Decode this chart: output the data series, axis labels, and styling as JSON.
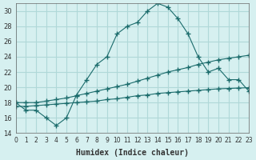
{
  "xlabel": "Humidex (Indice chaleur)",
  "ylabel": "",
  "bg_color": "#d6f0f0",
  "grid_color": "#b0d8d8",
  "line_color": "#1a6b6b",
  "xlim": [
    0,
    23
  ],
  "ylim": [
    14,
    31
  ],
  "xticks": [
    0,
    1,
    2,
    3,
    4,
    5,
    6,
    7,
    8,
    9,
    10,
    11,
    12,
    13,
    14,
    15,
    16,
    17,
    18,
    19,
    20,
    21,
    22,
    23
  ],
  "yticks": [
    14,
    16,
    18,
    20,
    22,
    24,
    26,
    28,
    30
  ],
  "line1_x": [
    0,
    1,
    2,
    3,
    4,
    5,
    6,
    7,
    8,
    9,
    10,
    11,
    12,
    13,
    14,
    15,
    16,
    17,
    18,
    19,
    20,
    21,
    22,
    23
  ],
  "line1_y": [
    18,
    17,
    17,
    16,
    15,
    16,
    19,
    21,
    23,
    24,
    27,
    28,
    28.5,
    30,
    31,
    30.5,
    29,
    27,
    24,
    22,
    22.5,
    21,
    21,
    19.5
  ],
  "line2_x": [
    0,
    1,
    2,
    3,
    4,
    5,
    6,
    7,
    8,
    9,
    10,
    11,
    12,
    13,
    14,
    15,
    16,
    17,
    18,
    19,
    20,
    21,
    22,
    23
  ],
  "line2_y": [
    18,
    18,
    18,
    18.2,
    18.4,
    18.6,
    18.9,
    19.2,
    19.5,
    19.8,
    20.1,
    20.4,
    20.8,
    21.2,
    21.6,
    22,
    22.3,
    22.6,
    23,
    23.3,
    23.6,
    23.8,
    24,
    24.2
  ],
  "line3_x": [
    0,
    1,
    2,
    3,
    4,
    5,
    6,
    7,
    8,
    9,
    10,
    11,
    12,
    13,
    14,
    15,
    16,
    17,
    18,
    19,
    20,
    21,
    22,
    23
  ],
  "line3_y": [
    17.5,
    17.5,
    17.6,
    17.7,
    17.8,
    17.9,
    18.0,
    18.1,
    18.2,
    18.4,
    18.5,
    18.7,
    18.9,
    19.0,
    19.2,
    19.3,
    19.4,
    19.5,
    19.6,
    19.7,
    19.8,
    19.85,
    19.9,
    19.95
  ]
}
